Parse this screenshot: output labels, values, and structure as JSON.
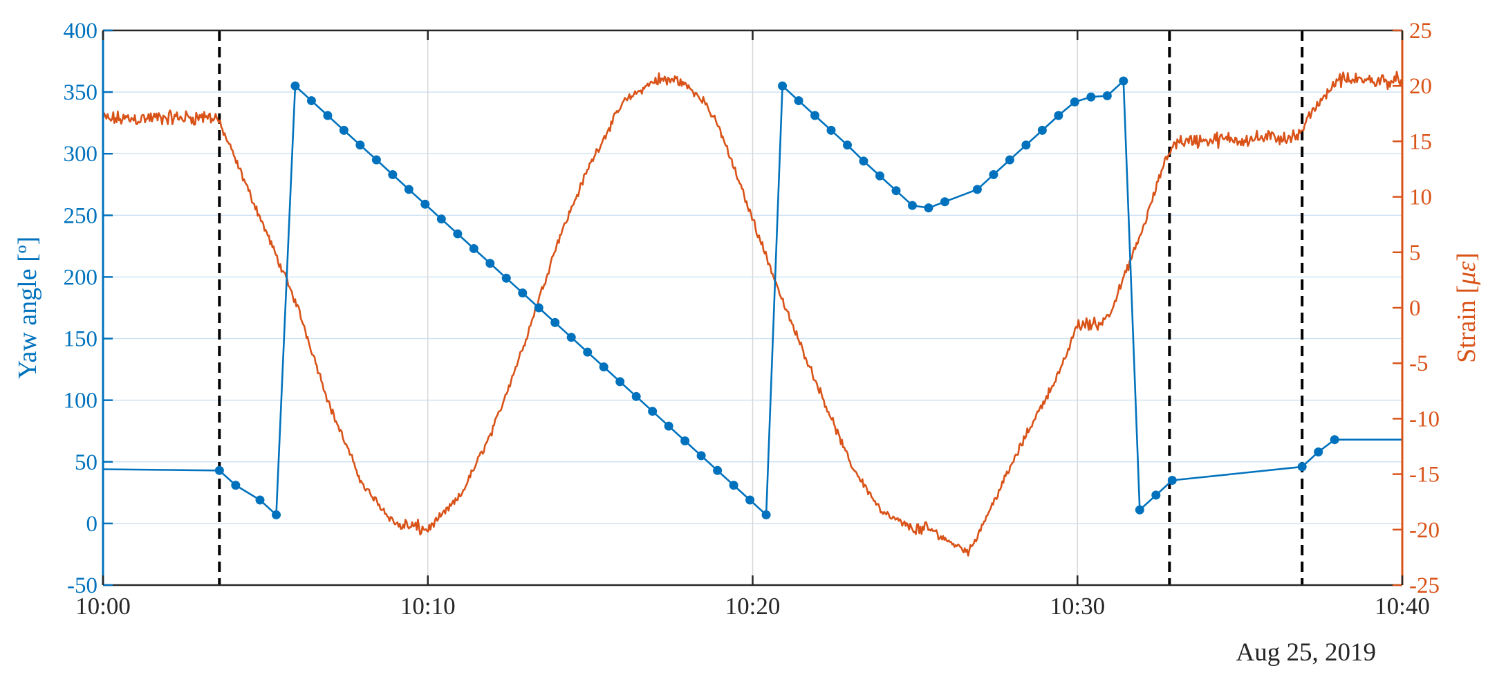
{
  "chart_data": {
    "type": "line",
    "x_axis": {
      "type": "time",
      "start": "10:00",
      "end": "10:40",
      "ticks": [
        "10:00",
        "10:10",
        "10:20",
        "10:30",
        "10:40"
      ],
      "date_label": "Aug 25, 2019",
      "grid": true
    },
    "y_left": {
      "label": "Yaw angle [º]",
      "ylim": [
        -50,
        400
      ],
      "ticks": [
        400,
        350,
        300,
        250,
        200,
        150,
        100,
        50,
        0,
        -50
      ],
      "tick_labels": [
        "400",
        "350",
        "300",
        "250",
        "200",
        "150",
        "100",
        "50",
        "0",
        "-50"
      ],
      "color": "#0072BD",
      "grid": true
    },
    "y_right": {
      "label": "Strain [",
      "label_math": "με",
      "label_end": "]",
      "ylim": [
        -25,
        25
      ],
      "ticks": [
        25,
        20,
        15,
        10,
        5,
        0,
        -5,
        -10,
        -15,
        -20,
        -25
      ],
      "tick_labels": [
        "25",
        "20",
        "15",
        "10",
        "5",
        "0",
        "-5",
        "-10",
        "-15",
        "-20",
        "-25"
      ],
      "color": "#D95319"
    },
    "vertical_markers": [
      "10:03:35",
      "10:32:50",
      "10:36:55"
    ],
    "series": [
      {
        "axis": "left",
        "color": "#0072BD",
        "marker": "circle",
        "x": [
          "10:00:00",
          "10:03:35",
          "10:04:05",
          "10:04:50",
          "10:05:20",
          "10:05:55",
          "10:06:25",
          "10:06:55",
          "10:07:25",
          "10:07:55",
          "10:08:25",
          "10:08:55",
          "10:09:25",
          "10:09:55",
          "10:10:25",
          "10:10:55",
          "10:11:25",
          "10:11:55",
          "10:12:25",
          "10:12:55",
          "10:13:25",
          "10:13:55",
          "10:14:25",
          "10:14:55",
          "10:15:25",
          "10:15:55",
          "10:16:25",
          "10:16:55",
          "10:17:25",
          "10:17:55",
          "10:18:25",
          "10:18:55",
          "10:19:25",
          "10:19:55",
          "10:20:25",
          "10:20:55",
          "10:21:25",
          "10:21:55",
          "10:22:25",
          "10:22:55",
          "10:23:25",
          "10:23:55",
          "10:24:25",
          "10:24:55",
          "10:25:25",
          "10:25:55",
          "10:26:55",
          "10:27:25",
          "10:27:55",
          "10:28:25",
          "10:28:55",
          "10:29:25",
          "10:29:55",
          "10:30:25",
          "10:30:55",
          "10:31:25",
          "10:31:55",
          "10:32:25",
          "10:32:55",
          "10:36:55",
          "10:37:25",
          "10:37:55",
          "10:40:00"
        ],
        "y": [
          44,
          43,
          31,
          19,
          7,
          355,
          343,
          331,
          319,
          307,
          295,
          283,
          271,
          259,
          247,
          235,
          223,
          211,
          199,
          187,
          175,
          163,
          151,
          139,
          127,
          115,
          103,
          91,
          79,
          67,
          55,
          43,
          31,
          19,
          7,
          355,
          343,
          331,
          319,
          307,
          294,
          282,
          270,
          258,
          256,
          261,
          271,
          283,
          295,
          307,
          319,
          331,
          342,
          346,
          347,
          359,
          11,
          23,
          35,
          46,
          58,
          68,
          68
        ]
      },
      {
        "axis": "right",
        "color": "#D95319",
        "noisy": true,
        "x": [
          "10:00:00",
          "10:03:30",
          "10:03:50",
          "10:05:00",
          "10:06:00",
          "10:07:00",
          "10:08:00",
          "10:09:00",
          "10:10:00",
          "10:11:00",
          "10:12:00",
          "10:13:00",
          "10:14:00",
          "10:15:00",
          "10:16:00",
          "10:17:00",
          "10:17:45",
          "10:18:30",
          "10:19:00",
          "10:20:00",
          "10:21:00",
          "10:22:00",
          "10:23:00",
          "10:24:00",
          "10:25:00",
          "10:25:30",
          "10:26:00",
          "10:26:40",
          "10:27:30",
          "10:28:30",
          "10:29:30",
          "10:30:00",
          "10:30:40",
          "10:31:00",
          "10:32:00",
          "10:32:40",
          "10:33:00",
          "10:36:50",
          "10:37:10",
          "10:38:00",
          "10:40:00"
        ],
        "y": [
          17,
          17.2,
          15,
          7,
          0,
          -9,
          -16,
          -19.5,
          -20,
          -17,
          -11,
          -3,
          6,
          13,
          18.5,
          20.5,
          20.5,
          18.7,
          16,
          8,
          0,
          -7,
          -14,
          -18.5,
          -20,
          -20,
          -21,
          -22,
          -17,
          -11,
          -5.5,
          -1.5,
          -1.5,
          -0.5,
          7,
          13,
          15,
          15.4,
          17.5,
          20.5,
          20.5
        ]
      }
    ]
  }
}
